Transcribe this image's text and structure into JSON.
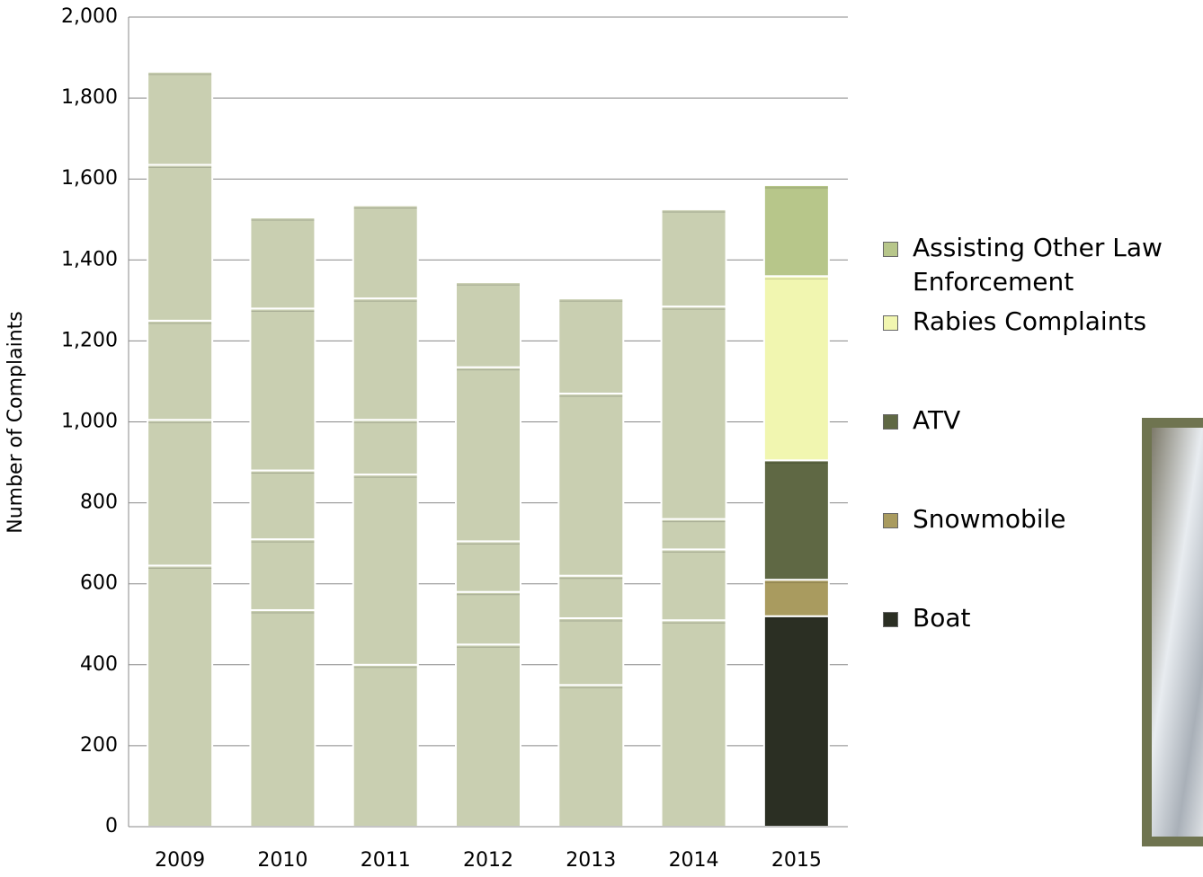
{
  "chart_data": {
    "type": "stacked_bar",
    "y_label": "Number of Complaints",
    "categories": [
      "2009",
      "2010",
      "2011",
      "2012",
      "2013",
      "2014",
      "2015"
    ],
    "series": [
      {
        "name": "Boat",
        "color": "#2b2f23",
        "point_colors": [
          "#c9cfb1",
          "#c9cfb1",
          "#c9cfb1",
          "#c9cfb1",
          "#c9cfb1",
          "#c9cfb1",
          "#2b2f23"
        ],
        "values": [
          645,
          535,
          400,
          450,
          350,
          510,
          520
        ]
      },
      {
        "name": "Snowmobile",
        "color": "#a99b5f",
        "point_colors": [
          "#c9cfb1",
          "#c9cfb1",
          "#c9cfb1",
          "#c9cfb1",
          "#c9cfb1",
          "#c9cfb1",
          "#a99b5f"
        ],
        "values": [
          360,
          175,
          470,
          130,
          165,
          175,
          90
        ]
      },
      {
        "name": "ATV",
        "color": "#5f6844",
        "point_colors": [
          "#c9cfb1",
          "#c9cfb1",
          "#c9cfb1",
          "#c9cfb1",
          "#c9cfb1",
          "#c9cfb1",
          "#5f6844"
        ],
        "values": [
          245,
          170,
          135,
          125,
          105,
          75,
          295
        ]
      },
      {
        "name": "Rabies Complaints",
        "color": "#f1f6b0",
        "point_colors": [
          "#c9cfb1",
          "#c9cfb1",
          "#c9cfb1",
          "#c9cfb1",
          "#c9cfb1",
          "#c9cfb1",
          "#f1f6b0"
        ],
        "values": [
          385,
          400,
          300,
          430,
          450,
          525,
          455
        ]
      },
      {
        "name": "Assisting Other Law Enforcement",
        "color": "#b7c68a",
        "point_colors": [
          "#c9cfb1",
          "#c9cfb1",
          "#c9cfb1",
          "#c9cfb1",
          "#c9cfb1",
          "#c9cfb1",
          "#b7c68a"
        ],
        "values": [
          230,
          225,
          230,
          210,
          235,
          240,
          225
        ]
      }
    ],
    "ylim": [
      0,
      2000
    ],
    "yticks": [
      0,
      200,
      400,
      600,
      800,
      {
        "value": 1000,
        "label": "1,000"
      },
      {
        "value": 1200,
        "label": "1,200"
      },
      {
        "value": 1400,
        "label": "1,400"
      },
      {
        "value": 1600,
        "label": "1,600"
      },
      {
        "value": 1800,
        "label": "1,800"
      },
      {
        "value": 2000,
        "label": "2,000"
      }
    ],
    "grid": true,
    "legend": "right"
  }
}
